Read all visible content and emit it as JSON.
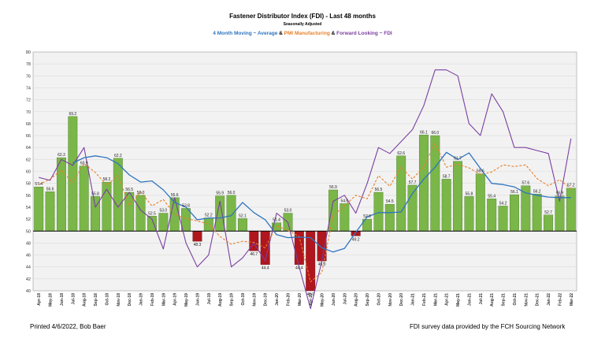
{
  "page": {
    "footer_left": "Printed 4/6/2022, Bob Baer",
    "footer_right": "FDI survey data provided by the FCH Sourcing Network"
  },
  "colors": {
    "bar_above": "#7ab648",
    "bar_above_border": "#4a7a2a",
    "bar_below": "#b0161e",
    "bar_below_border": "#6a0c10",
    "avg_line": "#2f74c0",
    "pmi_line": "#e8802a",
    "fli_line": "#7a3fa0",
    "plot_bg": "#f2f2f2",
    "grid": "#dcdcdc"
  },
  "chart_data": {
    "type": "bar",
    "title": "Fastener Distributor Index (FDI) - Last 48 months",
    "subtitle": "Seasonally Adjusted",
    "legend": [
      {
        "text": "4 Month Moving ~ Average",
        "color": "#2f74c0"
      },
      {
        "text": "&",
        "color": "#000000"
      },
      {
        "text": "PMI",
        "color": "#e8802a"
      },
      {
        "text": "Manufacturing",
        "color": "#e8802a"
      },
      {
        "text": "&",
        "color": "#000000"
      },
      {
        "text": "Forward Looking ~ FDI",
        "color": "#7a3fa0"
      }
    ],
    "baseline": 50,
    "ylim": [
      40,
      80
    ],
    "yticks": [
      40,
      42,
      44,
      46,
      48,
      50,
      52,
      54,
      56,
      58,
      60,
      62,
      64,
      66,
      68,
      70,
      72,
      74,
      76,
      78,
      80
    ],
    "grid": true,
    "categories": [
      "Apr-18",
      "May-18",
      "Jun-18",
      "Jul-18",
      "Aug-18",
      "Sep-18",
      "Oct-18",
      "Nov-18",
      "Dec-18",
      "Jan-19",
      "Feb-19",
      "Mar-19",
      "Apr-19",
      "May-19",
      "Jun-19",
      "Jul-19",
      "Aug-19",
      "Sep-19",
      "Oct-19",
      "Nov-19",
      "Dec-19",
      "Jan-20",
      "Feb-20",
      "Mar-20",
      "Apr-20",
      "May-20",
      "Jun-20",
      "Jul-20",
      "Aug-20",
      "Sep-20",
      "Oct-20",
      "Nov-20",
      "Dec-20",
      "Jan-21",
      "Feb-21",
      "Mar-21",
      "Apr-21",
      "May-21",
      "Jun-21",
      "Jul-21",
      "Aug-21",
      "Sep-21",
      "Oct-21",
      "Nov-21",
      "Dec-21",
      "Jan-22",
      "Feb-22",
      "Mar-22"
    ],
    "series": [
      {
        "name": "FDI",
        "type": "bar",
        "values": [
          57.4,
          56.6,
          62.3,
          69.2,
          60.9,
          55.8,
          58.2,
          62.2,
          56.5,
          56.0,
          52.5,
          53.0,
          55.6,
          53.8,
          48.3,
          52.2,
          55.9,
          56.0,
          52.1,
          46.7,
          44.4,
          51.4,
          53.0,
          44.4,
          40.0,
          45.0,
          56.9,
          54.6,
          49.2,
          52.0,
          56.5,
          54.5,
          62.6,
          57.7,
          66.1,
          66.0,
          58.7,
          61.7,
          55.8,
          59.6,
          55.4,
          54.2,
          56.1,
          57.6,
          56.2,
          52.7,
          55.9,
          57.2
        ]
      },
      {
        "name": "4 Month Moving ~ Average",
        "type": "line",
        "values": [
          null,
          null,
          null,
          61.4,
          62.3,
          62.6,
          62.3,
          61.3,
          59.4,
          58.2,
          58.4,
          56.9,
          54.8,
          54.0,
          51.9,
          52.2,
          52.2,
          52.6,
          54.8,
          53.1,
          51.9,
          49.4,
          48.9,
          49.0,
          48.9,
          47.2,
          46.5,
          47.1,
          49.8,
          52.4,
          53.1,
          53.1,
          53.2,
          56.3,
          58.7,
          60.7,
          63.2,
          62.0,
          63.1,
          60.5,
          58.0,
          57.8,
          57.4,
          56.4,
          56.0,
          55.7,
          55.6,
          55.6
        ]
      },
      {
        "name": "PMI Manufacturing",
        "type": "line",
        "dashed": true,
        "values": [
          57.8,
          58.7,
          60.2,
          58.1,
          61.3,
          59.8,
          57.7,
          59.3,
          54.3,
          56.6,
          54.2,
          55.3,
          52.8,
          52.1,
          51.7,
          51.2,
          49.1,
          47.8,
          48.3,
          48.1,
          47.2,
          50.9,
          50.1,
          49.1,
          41.5,
          43.1,
          52.6,
          54.2,
          56.0,
          55.4,
          59.3,
          57.5,
          60.7,
          58.7,
          60.8,
          64.7,
          60.7,
          61.2,
          60.6,
          59.5,
          59.9,
          61.1,
          60.8,
          61.1,
          58.8,
          57.6,
          58.6,
          57.1
        ]
      },
      {
        "name": "Forward Looking ~ FDI",
        "type": "line",
        "values": [
          59.0,
          58.5,
          62.0,
          61.0,
          64.0,
          54.0,
          57.0,
          54.0,
          56.5,
          53.5,
          52.0,
          47.0,
          55.6,
          48.0,
          44.0,
          46.0,
          55.0,
          44.0,
          45.5,
          48.0,
          45.0,
          53.0,
          51.5,
          44.0,
          37.0,
          45.0,
          55.0,
          56.0,
          53.0,
          58.0,
          64.0,
          63.0,
          65.0,
          67.0,
          71.0,
          77.0,
          77.0,
          76.0,
          68.0,
          66.0,
          73.0,
          70.0,
          64.0,
          64.0,
          63.5,
          63.0,
          55.0,
          65.5
        ]
      }
    ]
  }
}
